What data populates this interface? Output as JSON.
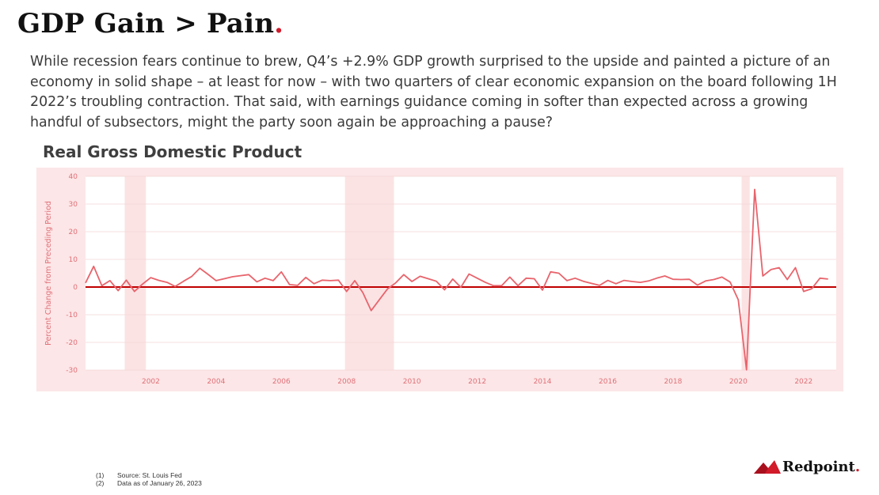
{
  "slide": {
    "title": "GDP Gain > Pain",
    "title_dot": ".",
    "intro": "While recession fears continue to brew, Q4’s +2.9% GDP growth surprised to the upside and painted a picture of an economy in solid shape – at least for now – with two quarters of clear economic expansion on the board following 1H 2022’s troubling contraction. That said, with earnings guidance coming in softer than expected across a growing handful of subsectors, might the party soon again be approaching a pause?"
  },
  "footnotes": [
    {
      "num": "(1)",
      "text": "Source: St. Louis Fed"
    },
    {
      "num": "(2)",
      "text": "Data as of January 26, 2023"
    }
  ],
  "brand": {
    "name": "Redpoint",
    "dot": ".",
    "accent": "#d11a2a"
  },
  "colors": {
    "line": "#e8646c",
    "zero_line": "#c00000",
    "recession": "#fbe3e4",
    "axis_text": "#e07078"
  },
  "chart_data": {
    "type": "line",
    "title": "Real Gross Domestic Product",
    "ylabel": "Percent Change from Preceding Period",
    "xlabel": "",
    "ylim": [
      -30,
      40
    ],
    "xlim": [
      2000.0,
      2023.0
    ],
    "yticks": [
      40,
      30,
      20,
      10,
      0,
      -10,
      -20,
      -30
    ],
    "xticks": [
      2002,
      2004,
      2006,
      2008,
      2010,
      2012,
      2014,
      2016,
      2018,
      2020,
      2022
    ],
    "grid": true,
    "recessions": [
      [
        2001.2,
        2001.85
      ],
      [
        2007.95,
        2009.45
      ],
      [
        2020.1,
        2020.35
      ]
    ],
    "series": [
      {
        "x": [
          2000.0,
          2000.25,
          2000.5,
          2000.75,
          2001.0,
          2001.25,
          2001.5,
          2001.75,
          2002.0,
          2002.25,
          2002.5,
          2002.75,
          2003.0,
          2003.25,
          2003.5,
          2003.75,
          2004.0,
          2004.25,
          2004.5,
          2004.75,
          2005.0,
          2005.25,
          2005.5,
          2005.75,
          2006.0,
          2006.25,
          2006.5,
          2006.75,
          2007.0,
          2007.25,
          2007.5,
          2007.75,
          2008.0,
          2008.25,
          2008.5,
          2008.75,
          2009.0,
          2009.25,
          2009.5,
          2009.75,
          2010.0,
          2010.25,
          2010.5,
          2010.75,
          2011.0,
          2011.25,
          2011.5,
          2011.75,
          2012.0,
          2012.25,
          2012.5,
          2012.75,
          2013.0,
          2013.25,
          2013.5,
          2013.75,
          2014.0,
          2014.25,
          2014.5,
          2014.75,
          2015.0,
          2015.25,
          2015.5,
          2015.75,
          2016.0,
          2016.25,
          2016.5,
          2016.75,
          2017.0,
          2017.25,
          2017.5,
          2017.75,
          2018.0,
          2018.25,
          2018.5,
          2018.75,
          2019.0,
          2019.25,
          2019.5,
          2019.75,
          2020.0,
          2020.25,
          2020.5,
          2020.75,
          2021.0,
          2021.25,
          2021.5,
          2021.75,
          2022.0,
          2022.25,
          2022.5,
          2022.75
        ],
        "y": [
          1.5,
          7.5,
          0.5,
          2.3,
          -1.3,
          2.5,
          -1.6,
          1.1,
          3.4,
          2.4,
          1.7,
          0.2,
          2.1,
          3.8,
          6.8,
          4.6,
          2.3,
          3.0,
          3.7,
          4.1,
          4.5,
          1.9,
          3.2,
          2.3,
          5.5,
          0.9,
          0.6,
          3.5,
          1.2,
          2.5,
          2.3,
          2.5,
          -1.6,
          2.3,
          -2.1,
          -8.5,
          -4.6,
          -0.7,
          1.5,
          4.5,
          2.0,
          3.9,
          3.0,
          2.1,
          -1.0,
          2.9,
          -0.1,
          4.7,
          3.2,
          1.7,
          0.5,
          0.5,
          3.6,
          0.5,
          3.2,
          3.0,
          -1.1,
          5.5,
          5.0,
          2.3,
          3.2,
          2.1,
          1.3,
          0.6,
          2.4,
          1.2,
          2.4,
          2.0,
          1.7,
          2.2,
          3.2,
          4.0,
          2.8,
          2.7,
          2.8,
          0.7,
          2.2,
          2.7,
          3.6,
          1.8,
          -4.6,
          -29.9,
          35.3,
          4.0,
          6.3,
          7.0,
          2.7,
          7.0,
          -1.6,
          -0.6,
          3.2,
          2.9
        ]
      }
    ]
  }
}
